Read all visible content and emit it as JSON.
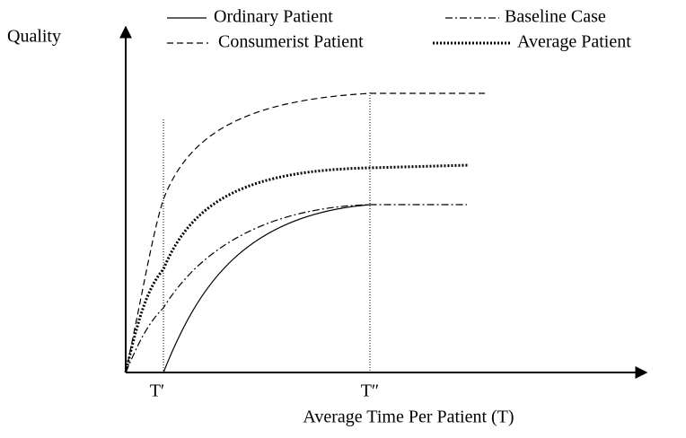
{
  "y_axis_label": "Quality",
  "x_axis_label": "Average Time Per Patient (T)",
  "legend": [
    "Ordinary Patient",
    "Baseline Case",
    "Consumerist Patient",
    "Average Patient"
  ],
  "ticks": [
    "T′",
    "T″"
  ]
}
